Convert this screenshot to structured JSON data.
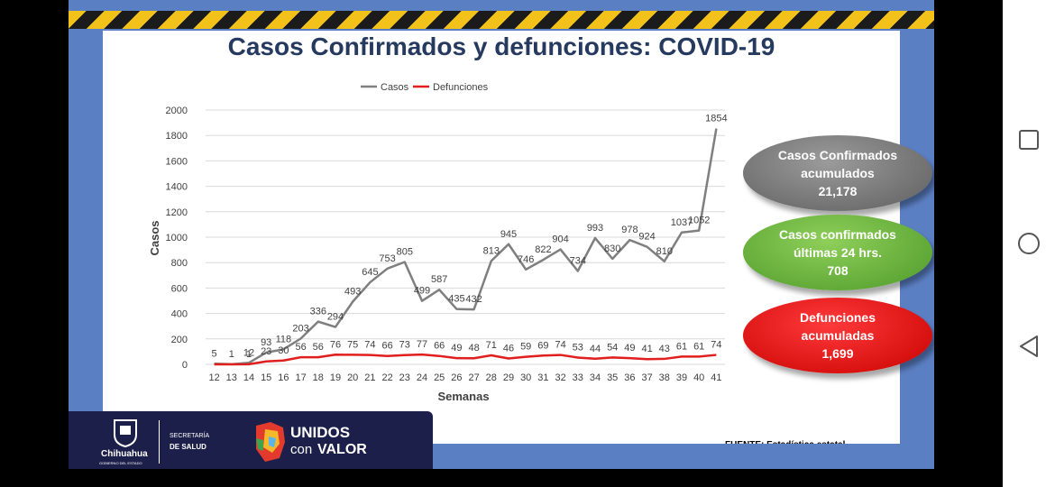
{
  "slide": {
    "title": "Casos Confirmados y defunciones: COVID-19",
    "fuente": "FUENTE: Estadística estatal"
  },
  "bubbles": {
    "casos_acumulados": {
      "line1": "Casos Confirmados",
      "line2": "acumulados",
      "value": "21,178",
      "color": "#7a7a7a"
    },
    "casos_24": {
      "line1": "Casos confirmados",
      "line2": "últimas 24 hrs.",
      "value": "708",
      "color": "#6ab83c"
    },
    "defunciones": {
      "line1": "Defunciones",
      "line2": "acumuladas",
      "value": "1,699",
      "color": "#e00000"
    }
  },
  "footer": {
    "state_name": "Chihuahua",
    "state_sub": "GOBIERNO DEL ESTADO",
    "secretaria_1": "SECRETARÍA",
    "secretaria_2": "DE SALUD",
    "slogan_1": "UNIDOS",
    "slogan_2": "con",
    "slogan_3": "VALOR"
  },
  "chart_data": {
    "type": "line",
    "xlabel": "Semanas",
    "ylabel": "Casos",
    "ylim": [
      0,
      2000
    ],
    "yticks": [
      0,
      200,
      400,
      600,
      800,
      1000,
      1200,
      1400,
      1600,
      1800,
      2000
    ],
    "legend_position": "top",
    "grid": true,
    "x": [
      "12",
      "13",
      "14",
      "15",
      "16",
      "17",
      "18",
      "19",
      "20",
      "21",
      "22",
      "23",
      "24",
      "25",
      "26",
      "27",
      "28",
      "29",
      "30",
      "31",
      "32",
      "33",
      "34",
      "35",
      "36",
      "37",
      "38",
      "39",
      "40",
      "41"
    ],
    "series": [
      {
        "name": "Casos",
        "color": "#7f7f7f",
        "values": [
          5,
          1,
          12,
          93,
          118,
          203,
          336,
          294,
          493,
          645,
          753,
          805,
          499,
          587,
          435,
          432,
          813,
          945,
          746,
          822,
          904,
          734,
          993,
          830,
          978,
          924,
          810,
          1037,
          1052,
          1854
        ],
        "labels": [
          "5",
          "1",
          "12",
          "93",
          "118",
          "203",
          "336",
          "294",
          "493",
          "645",
          "753",
          "805",
          "499",
          "587",
          "435",
          "432",
          "813",
          "945",
          "746",
          "822",
          "904",
          "734",
          "993",
          "830",
          "978",
          "924",
          "810",
          "1037",
          "1052",
          "1854"
        ]
      },
      {
        "name": "Defunciones",
        "color": "#e01e1e",
        "values": [
          0,
          0,
          1,
          23,
          30,
          56,
          56,
          76,
          75,
          74,
          66,
          73,
          77,
          66,
          49,
          48,
          71,
          46,
          59,
          69,
          74,
          53,
          44,
          54,
          49,
          41,
          43,
          61,
          61,
          74
        ],
        "labels": [
          "",
          "",
          "1",
          "23",
          "30",
          "56",
          "56",
          "76",
          "75",
          "74",
          "66",
          "73",
          "77",
          "66",
          "49",
          "48",
          "71",
          "46",
          "59",
          "69",
          "74",
          "53",
          "44",
          "54",
          "49",
          "41",
          "43",
          "61",
          "61",
          "74"
        ]
      }
    ]
  }
}
